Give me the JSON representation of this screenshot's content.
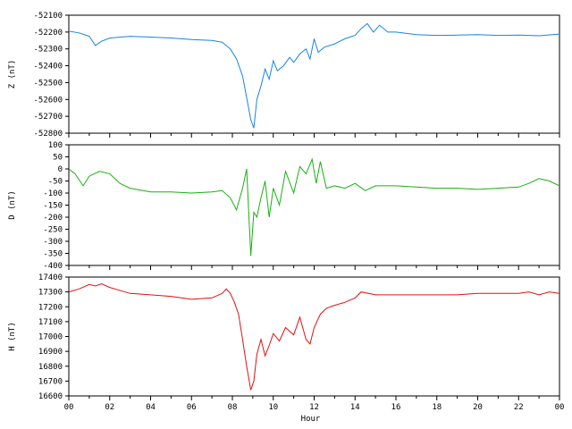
{
  "chart_data": [
    {
      "type": "line",
      "ylabel": "Z (nT)",
      "xlim": [
        0,
        24
      ],
      "ylim": [
        -52800,
        -52100
      ],
      "yticks": [
        -52100,
        -52200,
        -52300,
        -52400,
        -52500,
        -52600,
        -52700,
        -52800
      ],
      "color": "#1a84e0",
      "x": [
        0,
        0.5,
        1,
        1.3,
        1.6,
        2,
        3,
        4,
        5,
        6,
        7,
        7.5,
        7.9,
        8.2,
        8.5,
        8.7,
        8.9,
        9.05,
        9.2,
        9.4,
        9.6,
        9.8,
        10,
        10.2,
        10.5,
        10.8,
        11,
        11.3,
        11.6,
        11.8,
        12,
        12.2,
        12.5,
        13,
        13.5,
        14,
        14.3,
        14.6,
        14.9,
        15.2,
        15.6,
        16,
        17,
        18,
        19,
        20,
        21,
        22,
        23,
        24
      ],
      "values": [
        -52195,
        -52205,
        -52225,
        -52280,
        -52255,
        -52235,
        -52225,
        -52230,
        -52235,
        -52245,
        -52250,
        -52260,
        -52300,
        -52360,
        -52460,
        -52590,
        -52720,
        -52770,
        -52600,
        -52520,
        -52420,
        -52480,
        -52370,
        -52430,
        -52400,
        -52350,
        -52380,
        -52330,
        -52300,
        -52360,
        -52240,
        -52320,
        -52290,
        -52270,
        -52240,
        -52220,
        -52180,
        -52150,
        -52200,
        -52160,
        -52200,
        -52200,
        -52215,
        -52220,
        -52218,
        -52215,
        -52220,
        -52218,
        -52222,
        -52212
      ]
    },
    {
      "type": "line",
      "ylabel": "D (nT)",
      "xlim": [
        0,
        24
      ],
      "ylim": [
        -400,
        100
      ],
      "yticks": [
        100,
        50,
        0,
        -50,
        -100,
        -150,
        -200,
        -250,
        -300,
        -350,
        -400
      ],
      "color": "#18b010",
      "x": [
        0,
        0.3,
        0.7,
        1,
        1.5,
        2,
        2.5,
        3,
        4,
        5,
        6,
        7,
        7.5,
        7.9,
        8.2,
        8.5,
        8.7,
        8.9,
        9.05,
        9.2,
        9.4,
        9.6,
        9.8,
        10,
        10.3,
        10.6,
        11,
        11.3,
        11.6,
        11.9,
        12.1,
        12.3,
        12.6,
        13,
        13.5,
        14,
        14.5,
        15,
        16,
        17,
        18,
        19,
        20,
        21,
        22,
        22.5,
        23,
        23.5,
        24
      ],
      "values": [
        0,
        -20,
        -70,
        -30,
        -10,
        -20,
        -60,
        -80,
        -95,
        -95,
        -100,
        -95,
        -90,
        -120,
        -170,
        -80,
        0,
        -360,
        -180,
        -200,
        -120,
        -50,
        -200,
        -80,
        -150,
        -10,
        -100,
        10,
        -20,
        40,
        -60,
        30,
        -80,
        -70,
        -80,
        -60,
        -90,
        -70,
        -70,
        -75,
        -80,
        -80,
        -85,
        -80,
        -75,
        -60,
        -40,
        -50,
        -70
      ]
    },
    {
      "type": "line",
      "ylabel": "H (nT)",
      "xlabel": "Hour",
      "xlim": [
        0,
        24
      ],
      "ylim": [
        16600,
        17400
      ],
      "yticks": [
        17400,
        17300,
        17200,
        17100,
        17000,
        16900,
        16800,
        16700,
        16600
      ],
      "xticks": [
        "00",
        "02",
        "04",
        "06",
        "08",
        "10",
        "12",
        "14",
        "16",
        "18",
        "20",
        "22",
        "00"
      ],
      "color": "#e01010",
      "x": [
        0,
        0.5,
        1,
        1.3,
        1.6,
        2,
        3,
        4,
        5,
        6,
        7,
        7.5,
        7.7,
        7.9,
        8.1,
        8.3,
        8.5,
        8.7,
        8.9,
        9.05,
        9.2,
        9.4,
        9.6,
        9.8,
        10,
        10.3,
        10.6,
        11,
        11.3,
        11.6,
        11.8,
        12,
        12.3,
        12.6,
        13,
        13.5,
        14,
        14.3,
        15,
        16,
        17,
        18,
        19,
        20,
        21,
        22,
        22.5,
        23,
        23.5,
        24
      ],
      "values": [
        17300,
        17320,
        17350,
        17340,
        17355,
        17330,
        17290,
        17280,
        17270,
        17250,
        17260,
        17290,
        17320,
        17290,
        17230,
        17150,
        16980,
        16800,
        16640,
        16700,
        16880,
        16980,
        16870,
        16940,
        17020,
        16970,
        17060,
        17010,
        17130,
        16980,
        16950,
        17060,
        17150,
        17190,
        17210,
        17230,
        17260,
        17300,
        17280,
        17280,
        17280,
        17280,
        17280,
        17290,
        17290,
        17290,
        17300,
        17280,
        17300,
        17290
      ]
    }
  ]
}
